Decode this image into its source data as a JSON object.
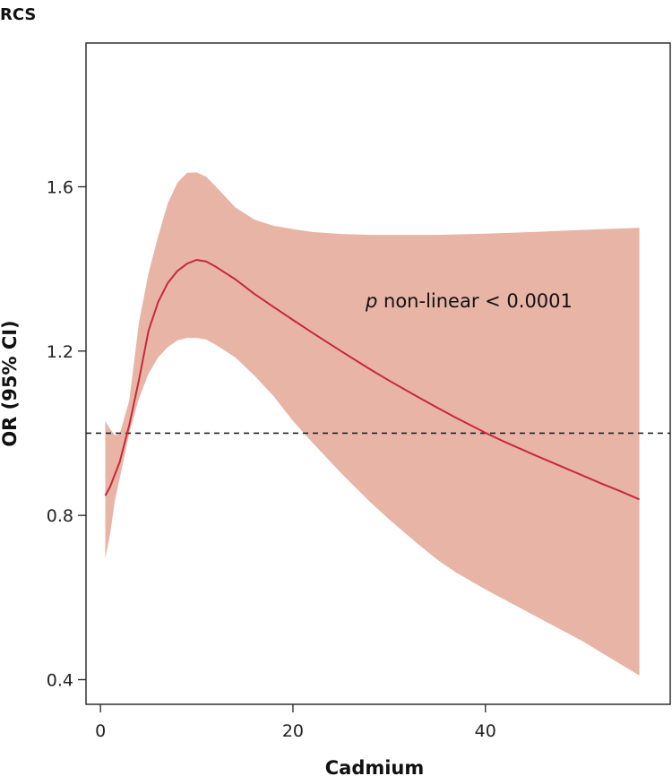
{
  "panel_label": "RCS",
  "annotation": {
    "p_symbol": "p",
    "text": " non-linear < 0.0001"
  },
  "colors": {
    "band": "#e8b4a6",
    "curve": "#c8283a",
    "reference": "#222222",
    "frame": "#222222"
  },
  "chart_data": {
    "type": "line",
    "title": "RCS",
    "xlabel": "Cadmium",
    "ylabel": "OR (95% CI)",
    "xlim": [
      -1.5,
      59.2
    ],
    "ylim": [
      0.34,
      1.95
    ],
    "x_ticks": [
      0,
      20,
      40
    ],
    "x_tick_labels": [
      "0",
      "20",
      "40"
    ],
    "y_ticks": [
      0.4,
      0.8,
      1.2,
      1.6
    ],
    "y_tick_labels": [
      "0.4",
      "0.8",
      "1.2",
      "1.6"
    ],
    "reference_line": {
      "y": 1.0,
      "style": "dashed"
    },
    "grid": false,
    "legend": "none",
    "series": [
      {
        "kind": "line",
        "x": [
          0.5,
          1,
          2,
          3,
          4,
          5,
          6,
          7,
          8,
          9,
          10,
          11,
          12,
          14,
          16,
          18,
          20,
          22,
          25,
          28,
          30,
          33,
          35,
          37,
          38,
          40,
          42,
          45,
          48,
          50,
          52,
          54,
          56
        ],
        "y": [
          0.848,
          0.87,
          0.93,
          1.02,
          1.13,
          1.25,
          1.32,
          1.366,
          1.395,
          1.413,
          1.422,
          1.418,
          1.405,
          1.375,
          1.339,
          1.307,
          1.276,
          1.245,
          1.2,
          1.156,
          1.128,
          1.088,
          1.062,
          1.037,
          1.025,
          1.001,
          0.979,
          0.948,
          0.918,
          0.898,
          0.878,
          0.859,
          0.839
        ]
      },
      {
        "kind": "band",
        "x": [
          0.5,
          1,
          1.5,
          2,
          3,
          4,
          5,
          6,
          7,
          8,
          9,
          10,
          11,
          12,
          14,
          16,
          18,
          20,
          22,
          25,
          28,
          30,
          33,
          35,
          37,
          40,
          45,
          50,
          56
        ],
        "upper": [
          1.03,
          1.01,
          0.995,
          0.998,
          1.08,
          1.27,
          1.39,
          1.48,
          1.56,
          1.61,
          1.634,
          1.635,
          1.624,
          1.6,
          1.55,
          1.52,
          1.505,
          1.497,
          1.49,
          1.485,
          1.483,
          1.483,
          1.483,
          1.483,
          1.484,
          1.486,
          1.49,
          1.495,
          1.5
        ],
        "lower": [
          0.695,
          0.755,
          0.835,
          0.89,
          1.0,
          1.085,
          1.145,
          1.185,
          1.21,
          1.226,
          1.232,
          1.232,
          1.228,
          1.215,
          1.185,
          1.14,
          1.09,
          1.03,
          0.978,
          0.903,
          0.833,
          0.79,
          0.73,
          0.692,
          0.66,
          0.62,
          0.557,
          0.495,
          0.41
        ]
      }
    ]
  }
}
